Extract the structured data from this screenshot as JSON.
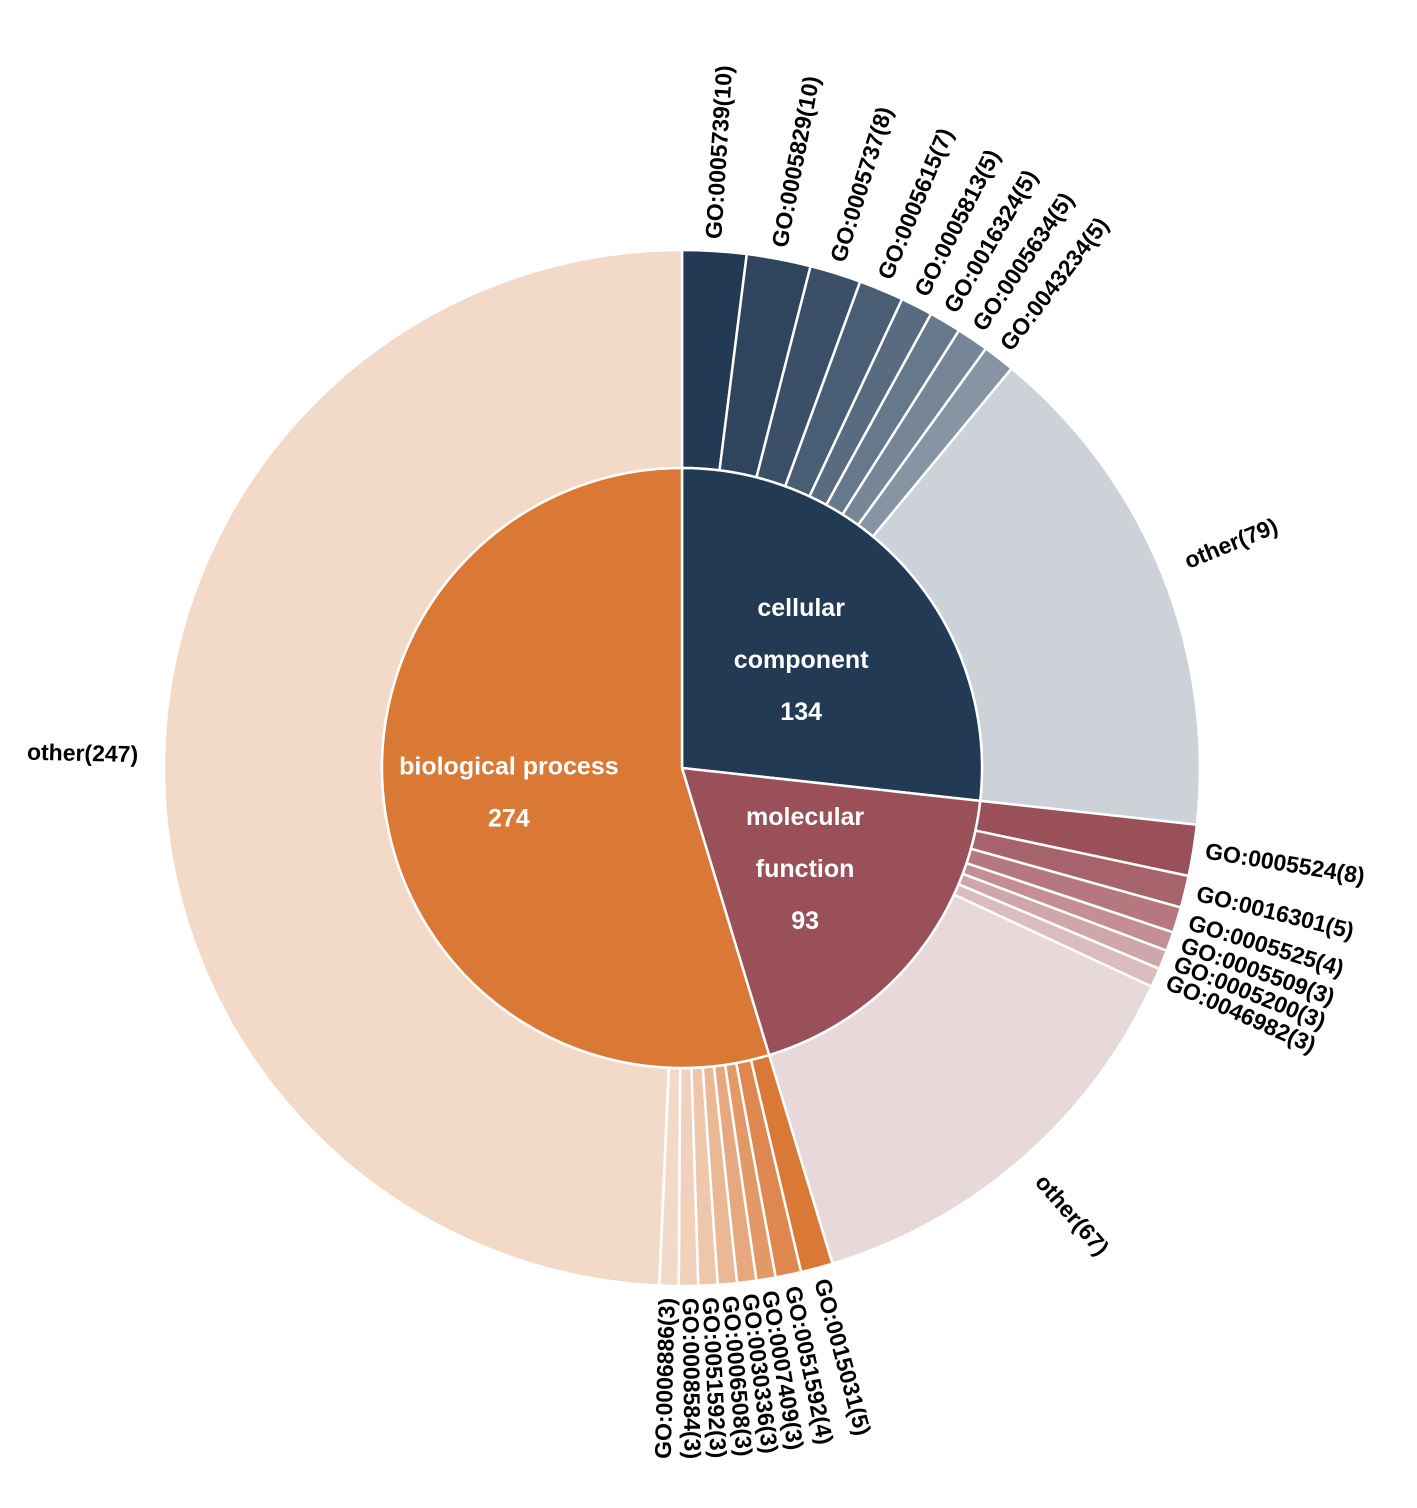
{
  "chart_data": {
    "type": "sunburst",
    "title": "",
    "start": "top",
    "direction": "clockwise",
    "categories": [
      {
        "name": "cellular component",
        "value": 134,
        "label_lines": [
          "cellular",
          "component",
          "134"
        ],
        "color": "#233a54",
        "children": [
          {
            "id": "GO:0005739",
            "value": 10,
            "label": "GO:0005739(10)",
            "color": "#233a54"
          },
          {
            "id": "GO:0005829",
            "value": 10,
            "label": "GO:0005829(10)",
            "color": "#2f445d"
          },
          {
            "id": "GO:0005737",
            "value": 8,
            "label": "GO:0005737(8)",
            "color": "#3b5068"
          },
          {
            "id": "GO:0005615",
            "value": 7,
            "label": "GO:0005615(7)",
            "color": "#495d74"
          },
          {
            "id": "GO:0005813",
            "value": 5,
            "label": "GO:0005813(5)",
            "color": "#586b80"
          },
          {
            "id": "GO:0016324",
            "value": 5,
            "label": "GO:0016324(5)",
            "color": "#66788b"
          },
          {
            "id": "GO:0005634",
            "value": 5,
            "label": "GO:0005634(5)",
            "color": "#768697"
          },
          {
            "id": "GO:0043234",
            "value": 5,
            "label": "GO:0043234(5)",
            "color": "#8694a3"
          },
          {
            "id": "other",
            "value": 79,
            "label": "other(79)",
            "color": "#cdd2d8"
          }
        ]
      },
      {
        "name": "molecular function",
        "value": 93,
        "label_lines": [
          "molecular",
          "function",
          "93"
        ],
        "color": "#9a5058",
        "children": [
          {
            "id": "GO:0005524",
            "value": 8,
            "label": "GO:0005524(8)",
            "color": "#9a5058"
          },
          {
            "id": "GO:0016301",
            "value": 5,
            "label": "GO:0016301(5)",
            "color": "#a7636b"
          },
          {
            "id": "GO:0005525",
            "value": 4,
            "label": "GO:0005525(4)",
            "color": "#b5787f"
          },
          {
            "id": "GO:0005509",
            "value": 3,
            "label": "GO:0005509(3)",
            "color": "#c38f95"
          },
          {
            "id": "GO:0005200",
            "value": 3,
            "label": "GO:0005200(3)",
            "color": "#cfa6aa"
          },
          {
            "id": "GO:0046982",
            "value": 3,
            "label": "GO:0046982(3)",
            "color": "#dbbcbf"
          },
          {
            "id": "other",
            "value": 67,
            "label": "other(67)",
            "color": "#e7d8d9"
          }
        ]
      },
      {
        "name": "biological process",
        "value": 274,
        "label_lines": [
          "biological process",
          "274"
        ],
        "color": "#da7835",
        "children": [
          {
            "id": "GO:0015031",
            "value": 5,
            "label": "GO:0015031(5)",
            "color": "#da7835"
          },
          {
            "id": "GO:0051592",
            "value": 4,
            "label": "GO:0051592(4)",
            "color": "#df8750"
          },
          {
            "id": "GO:0007409",
            "value": 3,
            "label": "GO:0007409(3)",
            "color": "#e39868"
          },
          {
            "id": "GO:0030336",
            "value": 3,
            "label": "GO:0030336(3)",
            "color": "#e7a87f"
          },
          {
            "id": "GO:0006508",
            "value": 3,
            "label": "GO:0006508(3)",
            "color": "#ebb896"
          },
          {
            "id": "GO:0051592",
            "value": 3,
            "label": "GO:0051592(3)",
            "color": "#eec6ab"
          },
          {
            "id": "GO:0008584",
            "value": 3,
            "label": "GO:0008584(3)",
            "color": "#f1d1bc"
          },
          {
            "id": "GO:0006886",
            "value": 3,
            "label": "GO:0006886(3)",
            "color": "#f3d9c7"
          },
          {
            "id": "other",
            "value": 247,
            "label": "other(247)",
            "color": "#f3dac8"
          }
        ]
      }
    ]
  }
}
